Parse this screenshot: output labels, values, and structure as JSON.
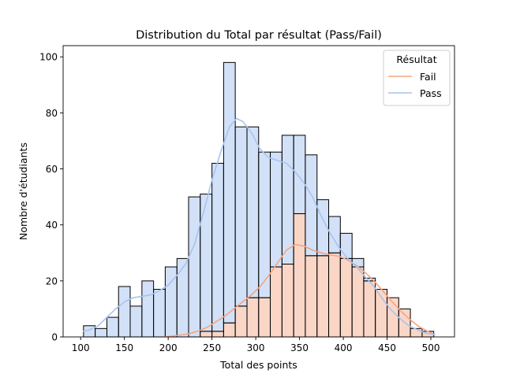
{
  "chart_data": {
    "type": "bar",
    "subtype": "stacked-histogram-with-kde",
    "title": "Distribution du Total par résultat (Pass/Fail)",
    "xlabel": "Total des points",
    "ylabel": "Nombre d'étudiants",
    "xlim": [
      80,
      527
    ],
    "ylim": [
      0,
      104
    ],
    "xticks": [
      100,
      150,
      200,
      250,
      300,
      350,
      400,
      450,
      500
    ],
    "yticks": [
      0,
      20,
      40,
      60,
      80,
      100
    ],
    "grid": false,
    "legend": {
      "title": "Résultat",
      "position": "top-right",
      "entries": [
        {
          "name": "Fail",
          "color": "#f4a582"
        },
        {
          "name": "Pass",
          "color": "#a6c4ef"
        }
      ]
    },
    "bin_edges": [
      103.3,
      116.6,
      130.0,
      143.3,
      156.6,
      170.0,
      183.3,
      196.6,
      210.0,
      223.3,
      236.6,
      250.0,
      263.3,
      276.6,
      290.0,
      303.3,
      316.6,
      330.0,
      343.3,
      356.6,
      370.0,
      383.3,
      396.6,
      410.0,
      423.3,
      436.6,
      450.0,
      463.3,
      476.6,
      490.0,
      503.3
    ],
    "series": [
      {
        "name": "Fail",
        "color": "#f4a582",
        "values": [
          0,
          0,
          0,
          0,
          0,
          0,
          0,
          0,
          0,
          0,
          2,
          2,
          5,
          11,
          14,
          14,
          25,
          26,
          44,
          29,
          29,
          30,
          28,
          25,
          20,
          17,
          14,
          10,
          3,
          2
        ]
      },
      {
        "name": "Pass",
        "color": "#a6c4ef",
        "values": [
          4,
          3,
          7,
          18,
          11,
          20,
          17,
          25,
          28,
          50,
          49,
          60,
          93,
          64,
          61,
          52,
          41,
          46,
          28,
          36,
          20,
          13,
          9,
          3,
          1,
          0,
          0,
          0,
          0,
          0
        ]
      }
    ],
    "kde": [
      {
        "name": "Fail",
        "color": "#f4a582",
        "x": [
          195,
          205,
          215,
          225,
          235,
          245,
          255,
          265,
          275,
          285,
          295,
          305,
          315,
          325,
          335,
          345,
          355,
          365,
          375,
          385,
          395,
          405,
          415,
          425,
          435,
          445,
          455,
          465,
          475,
          485,
          495,
          505
        ],
        "y": [
          0,
          0.3,
          0.7,
          1.2,
          2.2,
          3.5,
          5.5,
          7.5,
          10,
          12.5,
          15,
          18,
          22,
          26.5,
          31,
          33,
          32.5,
          31,
          30,
          29.3,
          28.8,
          27.5,
          25.5,
          23,
          20,
          16.5,
          12.8,
          9.5,
          6.5,
          4,
          2.2,
          0.8
        ]
      },
      {
        "name": "Pass",
        "color": "#a6c4ef",
        "x": [
          103,
          110,
          120,
          130,
          140,
          150,
          160,
          170,
          180,
          190,
          200,
          210,
          220,
          230,
          240,
          250,
          260,
          270,
          278,
          285,
          295,
          305,
          315,
          325,
          335,
          345,
          355,
          365,
          375,
          385,
          395,
          405,
          415,
          425,
          435,
          445,
          455,
          465,
          475,
          485,
          495,
          505
        ],
        "y": [
          2,
          2.5,
          4,
          7,
          10,
          12.5,
          14,
          14.5,
          15,
          16.5,
          18.5,
          22,
          26,
          33,
          44,
          56,
          66,
          75,
          78,
          77,
          73,
          67,
          64,
          63,
          62,
          59,
          55,
          50,
          43,
          37,
          32,
          28,
          25,
          21.5,
          18,
          13.5,
          9.5,
          6.5,
          4,
          2.5,
          1.3,
          0.8
        ]
      }
    ]
  }
}
